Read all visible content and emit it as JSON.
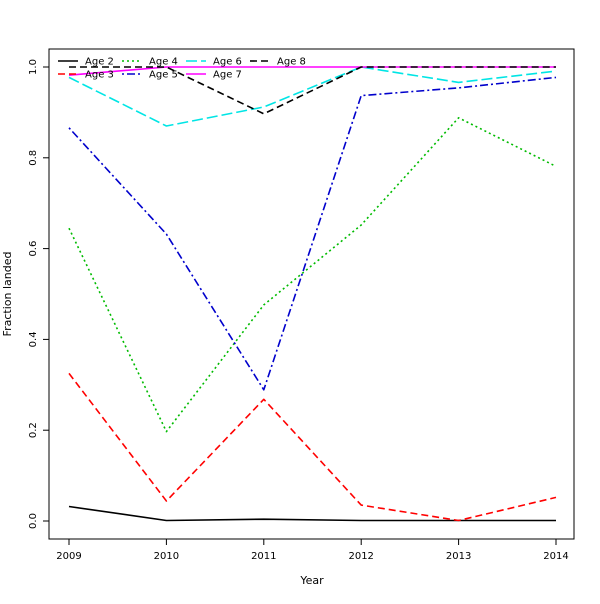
{
  "chart_data": {
    "type": "line",
    "title": "",
    "xlabel": "Year",
    "ylabel": "Fraction landed",
    "x": [
      2009,
      2010,
      2011,
      2012,
      2013,
      2014
    ],
    "xlim": [
      2009,
      2014
    ],
    "ylim": [
      0.0,
      1.0
    ],
    "x_ticks": [
      "2009",
      "2010",
      "2011",
      "2012",
      "2013",
      "2014"
    ],
    "y_ticks": [
      "0.0",
      "0.2",
      "0.4",
      "0.6",
      "0.8",
      "1.0"
    ],
    "grid": false,
    "legend_position": "top-left",
    "series": [
      {
        "name": "Age 2",
        "color": "#000000",
        "dash": "solid",
        "values": [
          0.032,
          0.001,
          0.004,
          0.001,
          0.001,
          0.001
        ]
      },
      {
        "name": "Age 3",
        "color": "#ff0000",
        "dash": "dashed",
        "values": [
          0.325,
          0.044,
          0.268,
          0.035,
          0.001,
          0.052
        ]
      },
      {
        "name": "Age 4",
        "color": "#00bb00",
        "dash": "dotted",
        "values": [
          0.645,
          0.197,
          0.476,
          0.652,
          0.888,
          0.781
        ]
      },
      {
        "name": "Age 5",
        "color": "#0000cc",
        "dash": "dashdot",
        "values": [
          0.866,
          0.632,
          0.289,
          0.937,
          0.954,
          0.977
        ]
      },
      {
        "name": "Age 6",
        "color": "#00e5e5",
        "dash": "longdash",
        "values": [
          0.977,
          0.87,
          0.912,
          1.0,
          0.966,
          0.991
        ]
      },
      {
        "name": "Age 7",
        "color": "#ff00ff",
        "dash": "solid",
        "values": [
          0.982,
          1.0,
          1.0,
          1.0,
          1.0,
          1.0
        ]
      },
      {
        "name": "Age 8",
        "color": "#000000",
        "dash": "dashed",
        "values": [
          1.0,
          1.0,
          0.897,
          1.0,
          1.0,
          1.0
        ]
      }
    ]
  }
}
